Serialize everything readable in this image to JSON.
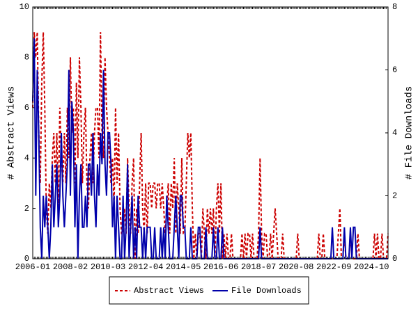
{
  "chart_data": {
    "type": "line",
    "ylabel": "# Abstract Views",
    "y2label": "# File Downloads",
    "categories": [
      "2006-01",
      null,
      null,
      null,
      null,
      null,
      null,
      null,
      null,
      null,
      null,
      null,
      null,
      null,
      null,
      null,
      null,
      null,
      null,
      null,
      null,
      null,
      null,
      null,
      null,
      "2008-02",
      null,
      null,
      null,
      null,
      null,
      null,
      null,
      null,
      null,
      null,
      null,
      null,
      null,
      null,
      null,
      null,
      null,
      null,
      null,
      null,
      null,
      null,
      null,
      null,
      "2010-03",
      null,
      null,
      null,
      null,
      null,
      null,
      null,
      null,
      null,
      null,
      null,
      null,
      null,
      null,
      null,
      null,
      null,
      null,
      null,
      null,
      null,
      null,
      null,
      null,
      "2012-04",
      null,
      null,
      null,
      null,
      null,
      null,
      null,
      null,
      null,
      null,
      null,
      null,
      null,
      null,
      null,
      null,
      null,
      null,
      null,
      null,
      null,
      null,
      null,
      null,
      "2014-05",
      null,
      null,
      null,
      null,
      null,
      null,
      null,
      null,
      null,
      null,
      null,
      null,
      null,
      null,
      null,
      null,
      null,
      null,
      null,
      null,
      null,
      null,
      null,
      null,
      "2016-06",
      null,
      null,
      null,
      null,
      null,
      null,
      null,
      null,
      null,
      null,
      null,
      null,
      null,
      null,
      null,
      null,
      null,
      null,
      null,
      null,
      null,
      null,
      null,
      null,
      "2018-07",
      null,
      null,
      null,
      null,
      null,
      null,
      null,
      null,
      null,
      null,
      null,
      null,
      null,
      null,
      null,
      null,
      null,
      null,
      null,
      null,
      null,
      null,
      null,
      null,
      "2020-08",
      null,
      null,
      null,
      null,
      null,
      null,
      null,
      null,
      null,
      null,
      null,
      null,
      null,
      null,
      null,
      null,
      null,
      null,
      null,
      null,
      null,
      null,
      null,
      null,
      "2022-09",
      null,
      null,
      null,
      null,
      null,
      null,
      null,
      null,
      null,
      null,
      null,
      null,
      null,
      null,
      null,
      null,
      null,
      null,
      null,
      null,
      null,
      null,
      null,
      null,
      "2024-10",
      null,
      null,
      null,
      null,
      null,
      null,
      null,
      null,
      null,
      null,
      null
    ],
    "series": [
      {
        "name": "Abstract Views",
        "color": "#cc0000",
        "linestyle": "dashed",
        "axis": "y",
        "values": [
          6,
          9,
          8,
          9,
          5,
          3,
          7,
          9,
          6,
          2,
          1,
          3,
          2,
          4,
          5,
          3,
          5,
          2,
          6,
          4,
          3,
          5,
          3,
          6,
          4,
          8,
          5,
          6,
          3,
          7,
          4,
          8,
          6,
          3,
          5,
          6,
          3,
          2,
          4,
          5,
          3,
          5,
          6,
          6,
          4,
          9,
          5,
          4,
          8,
          6,
          5,
          4,
          3,
          4,
          2,
          6,
          3,
          5,
          2,
          1,
          1,
          2,
          1,
          4,
          2,
          1,
          3,
          4,
          0,
          2,
          1,
          3,
          5,
          2,
          1,
          3,
          1,
          3,
          3,
          2,
          3,
          3,
          2,
          3,
          3,
          2,
          3,
          2,
          1,
          2,
          3,
          1,
          3,
          2,
          4,
          1,
          3,
          2,
          1,
          4,
          1,
          1,
          3,
          5,
          4,
          5,
          2,
          0,
          1,
          0,
          1,
          1,
          0,
          2,
          1,
          0,
          2,
          1,
          2,
          1,
          2,
          0,
          2,
          3,
          1,
          3,
          0,
          1,
          0,
          1,
          0,
          0,
          1,
          0,
          0,
          0,
          0,
          0,
          0,
          1,
          0,
          1,
          0,
          1,
          1,
          0,
          1,
          0,
          0,
          0,
          1,
          4,
          1,
          0,
          1,
          1,
          0,
          0,
          1,
          0,
          1,
          2,
          1,
          0,
          0,
          0,
          1,
          0,
          0,
          0,
          0,
          0,
          0,
          0,
          0,
          0,
          1,
          0,
          0,
          0,
          0,
          0,
          0,
          0,
          0,
          0,
          0,
          0,
          0,
          0,
          1,
          0,
          0,
          1,
          0,
          0,
          0,
          0,
          0,
          0,
          0,
          0,
          0,
          1,
          2,
          0,
          0,
          1,
          0,
          0,
          0,
          1,
          0,
          0,
          0,
          0,
          1,
          0,
          0,
          0,
          0,
          0,
          0,
          0,
          0,
          0,
          0,
          1,
          0,
          1,
          0,
          0,
          1,
          0,
          0,
          0,
          1
        ]
      },
      {
        "name": "File Downloads",
        "color": "#0000aa",
        "linestyle": "solid",
        "axis": "y2",
        "values": [
          5,
          7,
          2,
          6,
          4,
          1,
          0,
          2,
          1,
          2,
          1,
          0,
          1,
          3,
          1,
          2,
          3,
          1,
          2,
          4,
          2,
          1,
          2,
          3,
          6,
          2,
          5,
          4,
          1,
          3,
          0,
          2,
          3,
          1,
          1,
          2,
          1,
          3,
          3,
          2,
          4,
          2,
          1,
          3,
          2,
          4,
          3,
          6,
          3,
          2,
          4,
          4,
          3,
          1,
          2,
          0,
          2,
          1,
          0,
          0,
          2,
          0,
          1,
          3,
          0,
          1,
          2,
          0,
          1,
          0,
          2,
          1,
          1,
          0,
          1,
          0,
          1,
          1,
          1,
          0,
          0,
          1,
          0,
          0,
          0,
          1,
          0,
          1,
          0,
          2,
          1,
          0,
          0,
          0,
          1,
          2,
          1,
          0,
          2,
          2,
          1,
          1,
          0,
          0,
          0,
          1,
          0,
          0,
          0,
          0,
          1,
          1,
          0,
          0,
          0,
          1,
          0,
          0,
          0,
          0,
          1,
          0,
          0,
          1,
          0,
          0,
          1,
          0,
          0,
          0,
          0,
          0,
          0,
          0,
          0,
          0,
          0,
          0,
          0,
          0,
          0,
          0,
          0,
          0,
          0,
          0,
          0,
          0,
          0,
          0,
          0,
          1,
          0,
          0,
          0,
          0,
          0,
          0,
          0,
          0,
          0,
          0,
          0,
          0,
          0,
          0,
          0,
          0,
          0,
          0,
          0,
          0,
          0,
          0,
          0,
          0,
          0,
          0,
          0,
          0,
          0,
          0,
          0,
          0,
          0,
          0,
          0,
          0,
          0,
          0,
          0,
          0,
          0,
          0,
          0,
          0,
          0,
          0,
          0,
          1,
          0,
          0,
          0,
          0,
          0,
          0,
          0,
          1,
          0,
          0,
          0,
          1,
          0,
          1,
          1,
          0,
          0,
          0,
          0,
          0,
          0,
          0,
          0,
          0,
          0,
          0,
          0,
          0,
          0,
          0,
          0,
          0,
          0,
          0,
          0,
          0,
          0
        ]
      }
    ],
    "ylim": [
      0,
      10
    ],
    "yticks": [
      0,
      2,
      4,
      6,
      8,
      10
    ],
    "y2lim": [
      0,
      8
    ],
    "y2ticks": [
      0,
      2,
      4,
      6,
      8
    ],
    "grid": false,
    "legend": "bottom"
  }
}
